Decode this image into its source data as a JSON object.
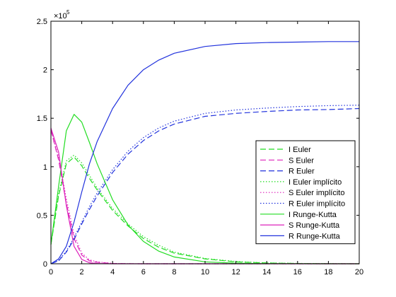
{
  "chart_data": {
    "type": "line",
    "title": "",
    "xlabel": "",
    "ylabel": "",
    "xlim": [
      0,
      20
    ],
    "ylim": [
      0,
      250000
    ],
    "y_exponent_label": "×10",
    "y_exponent_power": "5",
    "x_ticks": [
      {
        "value": 0,
        "label": "0"
      },
      {
        "value": 2,
        "label": "2"
      },
      {
        "value": 4,
        "label": "4"
      },
      {
        "value": 6,
        "label": "6"
      },
      {
        "value": 8,
        "label": "8"
      },
      {
        "value": 10,
        "label": "10"
      },
      {
        "value": 12,
        "label": "12"
      },
      {
        "value": 14,
        "label": "14"
      },
      {
        "value": 16,
        "label": "16"
      },
      {
        "value": 18,
        "label": "18"
      },
      {
        "value": 20,
        "label": "20"
      }
    ],
    "y_ticks": [
      {
        "value": 0,
        "label": "0"
      },
      {
        "value": 50000,
        "label": "0.5"
      },
      {
        "value": 100000,
        "label": "1"
      },
      {
        "value": 150000,
        "label": "1.5"
      },
      {
        "value": 200000,
        "label": "2"
      },
      {
        "value": 250000,
        "label": "2.5"
      }
    ],
    "grid": false,
    "legend_position": "right",
    "x": [
      0,
      0.5,
      1,
      1.5,
      2,
      2.5,
      3,
      4,
      5,
      6,
      7,
      8,
      10,
      12,
      14,
      16,
      18,
      20
    ],
    "series": [
      {
        "name": "I Euler",
        "color": "#22dd22",
        "dash": "dashed",
        "values": [
          20000,
          70000,
          103000,
          110000,
          101000,
          88000,
          76000,
          55000,
          39000,
          26000,
          17000,
          11000,
          5000,
          2000,
          800,
          300,
          100,
          0
        ]
      },
      {
        "name": "S Euler",
        "color": "#dd22bb",
        "dash": "dashed",
        "values": [
          138000,
          107000,
          62000,
          26000,
          9000,
          3000,
          1500,
          300,
          50,
          0,
          0,
          0,
          0,
          0,
          0,
          0,
          0,
          0
        ]
      },
      {
        "name": "R Euler",
        "color": "#2233dd",
        "dash": "dashed",
        "values": [
          0,
          3000,
          12000,
          25000,
          41000,
          56000,
          70000,
          94000,
          113000,
          127000,
          137000,
          144000,
          152000,
          155000,
          157000,
          158500,
          159000,
          160000
        ]
      },
      {
        "name": "I Euler implícito",
        "color": "#22dd22",
        "dash": "dotted",
        "values": [
          20000,
          72000,
          106000,
          112000,
          104000,
          91000,
          78000,
          57000,
          41000,
          28000,
          19000,
          12000,
          5500,
          2300,
          900,
          350,
          120,
          0
        ]
      },
      {
        "name": "S Euler implícito",
        "color": "#dd22bb",
        "dash": "dotted",
        "values": [
          138000,
          110000,
          67000,
          30000,
          11000,
          4000,
          2000,
          400,
          60,
          0,
          0,
          0,
          0,
          0,
          0,
          0,
          0,
          0
        ]
      },
      {
        "name": "R Euler implícito",
        "color": "#2233dd",
        "dash": "dotted",
        "values": [
          0,
          3500,
          13000,
          27000,
          43000,
          59000,
          73000,
          97000,
          116000,
          130000,
          140000,
          147000,
          155000,
          158500,
          160500,
          162000,
          163000,
          163500
        ]
      },
      {
        "name": "I Runge-Kutta",
        "color": "#22dd22",
        "dash": "solid",
        "values": [
          20000,
          80000,
          137000,
          154000,
          146000,
          125000,
          103000,
          66000,
          40000,
          23000,
          13000,
          7000,
          2000,
          600,
          150,
          40,
          10,
          0
        ]
      },
      {
        "name": "S Runge-Kutta",
        "color": "#dd22bb",
        "dash": "solid",
        "values": [
          140000,
          115000,
          60000,
          18000,
          4500,
          1000,
          300,
          30,
          0,
          0,
          0,
          0,
          0,
          0,
          0,
          0,
          0,
          0
        ]
      },
      {
        "name": "R Runge-Kutta",
        "color": "#2233dd",
        "dash": "solid",
        "values": [
          0,
          5000,
          18000,
          43000,
          74000,
          103000,
          126000,
          160000,
          184000,
          200000,
          210000,
          217000,
          224000,
          227000,
          228000,
          228500,
          229000,
          229000
        ]
      }
    ]
  }
}
